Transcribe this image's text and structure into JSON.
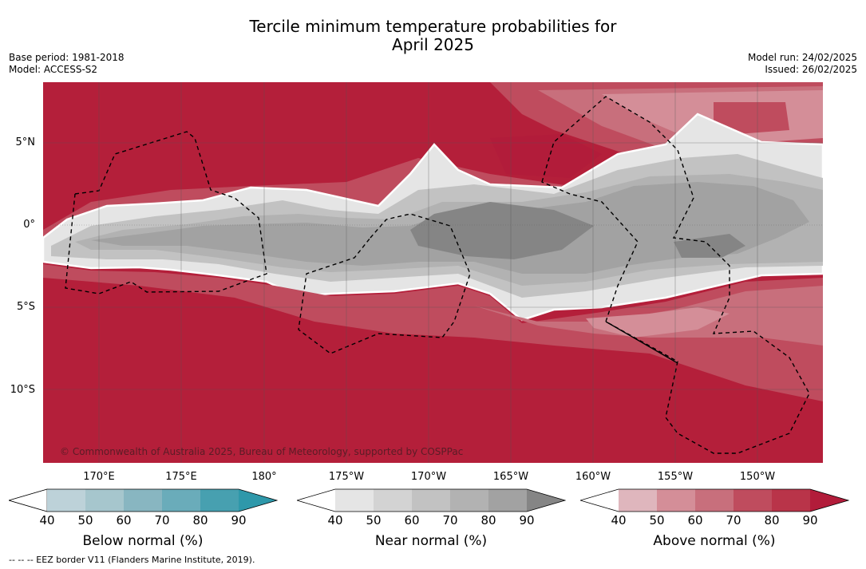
{
  "title_line1": "Tercile minimum temperature probabilities for",
  "title_line2": "April 2025",
  "base_period": "Base period: 1981-2018",
  "model": "Model: ACCESS-S2",
  "model_run": "Model run: 24/02/2025",
  "issued": "Issued: 26/02/2025",
  "lat_labels": [
    "5°N",
    "0°",
    "5°S",
    "10°S"
  ],
  "lon_labels": [
    "170°E",
    "175°E",
    "180°",
    "175°W",
    "170°W",
    "165°W",
    "160°W",
    "155°W",
    "150°W"
  ],
  "copyright": "© Commonwealth of Australia 2025, Bureau of Meteorology, supported by COSPPac",
  "colorbars": {
    "below": {
      "label": "Below normal (%)",
      "ticks": [
        "40",
        "50",
        "60",
        "70",
        "80",
        "90"
      ],
      "colors": [
        "#ffffff",
        "#bdd2d9",
        "#a6c6cd",
        "#88b6c1",
        "#6aacba",
        "#47a0b0",
        "#2e98aa"
      ]
    },
    "near": {
      "label": "Near normal (%)",
      "ticks": [
        "40",
        "50",
        "60",
        "70",
        "80",
        "90"
      ],
      "colors": [
        "#ffffff",
        "#e5e5e5",
        "#d3d3d3",
        "#c2c2c2",
        "#b2b2b2",
        "#a2a2a2",
        "#858585"
      ]
    },
    "above": {
      "label": "Above normal (%)",
      "ticks": [
        "40",
        "50",
        "60",
        "70",
        "80",
        "90"
      ],
      "colors": [
        "#ffffff",
        "#dfb6bd",
        "#d48e98",
        "#c86f7c",
        "#bf4c5e",
        "#b93449",
        "#b21c3a"
      ]
    }
  },
  "eez_note": "--  --  -- EEZ border V11 (Flanders Marine Institute, 2019)."
}
